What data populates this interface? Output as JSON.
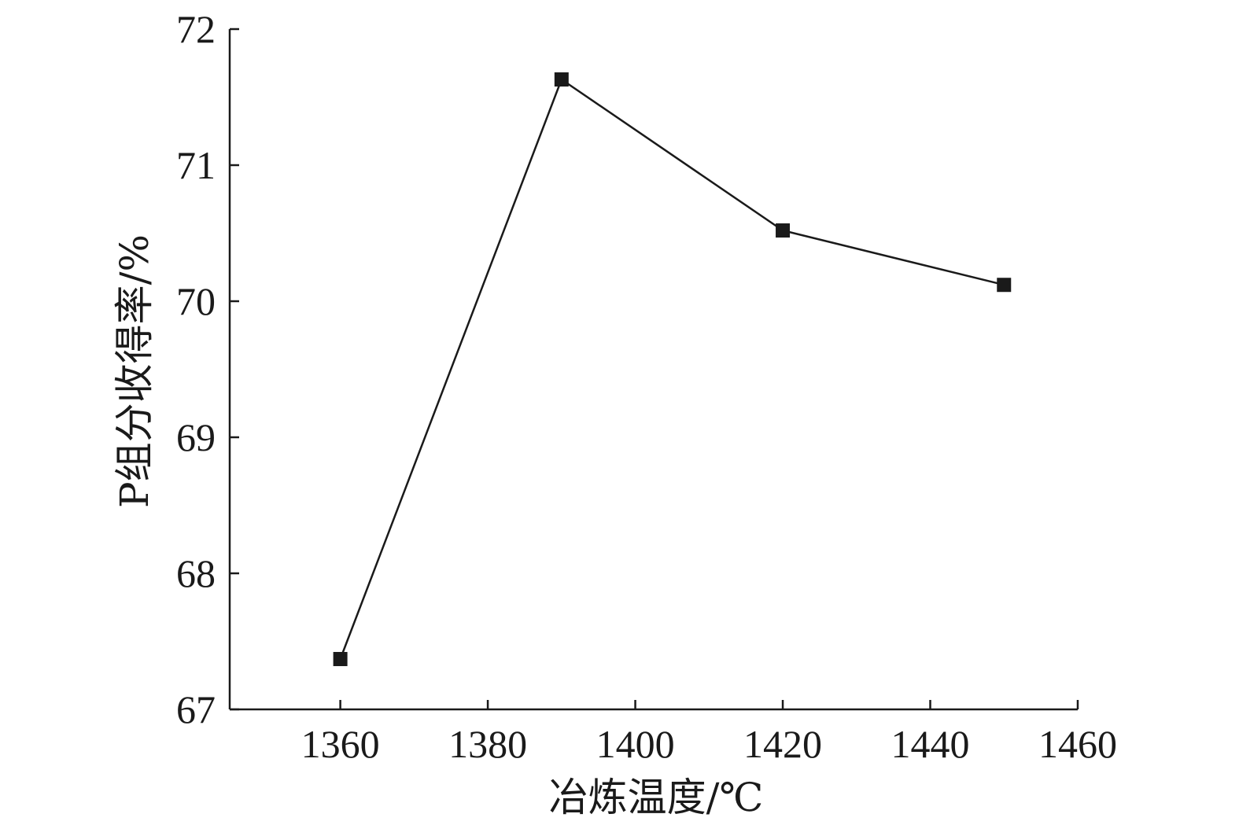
{
  "chart_data": {
    "type": "line",
    "title": "",
    "xlabel": "冶炼温度/℃",
    "ylabel": "P组分收得率/%",
    "xlim": [
      1345,
      1460
    ],
    "ylim": [
      67,
      72
    ],
    "x_ticks": [
      1360,
      1380,
      1400,
      1420,
      1440,
      1460
    ],
    "y_ticks": [
      67,
      68,
      69,
      70,
      71,
      72
    ],
    "grid": false,
    "legend": "none",
    "series": [
      {
        "x": [
          1360,
          1390,
          1420,
          1450
        ],
        "values": [
          67.37,
          71.63,
          70.52,
          70.12
        ],
        "marker": "square",
        "color": "#1a1a1a"
      }
    ]
  }
}
